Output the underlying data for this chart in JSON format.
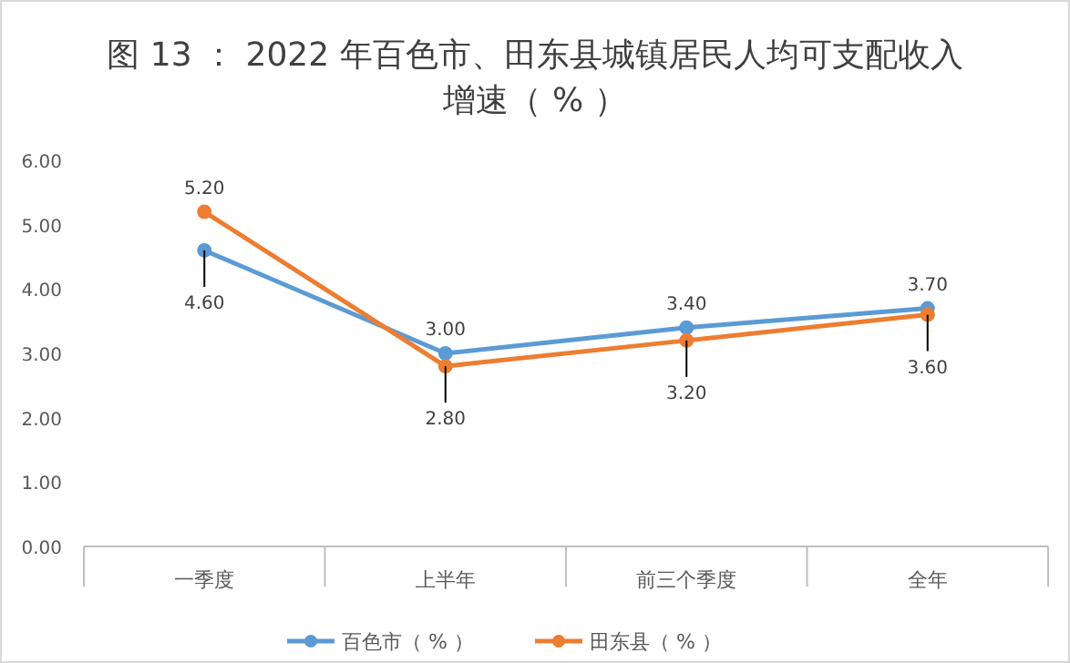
{
  "chart_data": {
    "type": "line",
    "title": "图 13 ： 2022 年百色市、田东县城镇居民人均可支配收入增速（ % ）",
    "categories": [
      "一季度",
      "上半年",
      "前三个季度",
      "全年"
    ],
    "series": [
      {
        "name": "百色市（ % ）",
        "color": "#5b9bd5",
        "values": [
          4.6,
          3.0,
          3.4,
          3.7
        ],
        "value_labels": [
          "4.60",
          "3.00",
          "3.40",
          "3.70"
        ]
      },
      {
        "name": "田东县（ % ）",
        "color": "#ed7d31",
        "values": [
          5.2,
          2.8,
          3.2,
          3.6
        ],
        "value_labels": [
          "5.20",
          "2.80",
          "3.20",
          "3.60"
        ]
      }
    ],
    "ylim": [
      0,
      6
    ],
    "yticks": [
      {
        "value": 0,
        "label": "0.00"
      },
      {
        "value": 1,
        "label": "1.00"
      },
      {
        "value": 2,
        "label": "2.00"
      },
      {
        "value": 3,
        "label": "3.00"
      },
      {
        "value": 4,
        "label": "4.00"
      },
      {
        "value": 5,
        "label": "5.00"
      },
      {
        "value": 6,
        "label": "6.00"
      }
    ],
    "legend": "bottom",
    "marker": "circle",
    "grid": false
  }
}
